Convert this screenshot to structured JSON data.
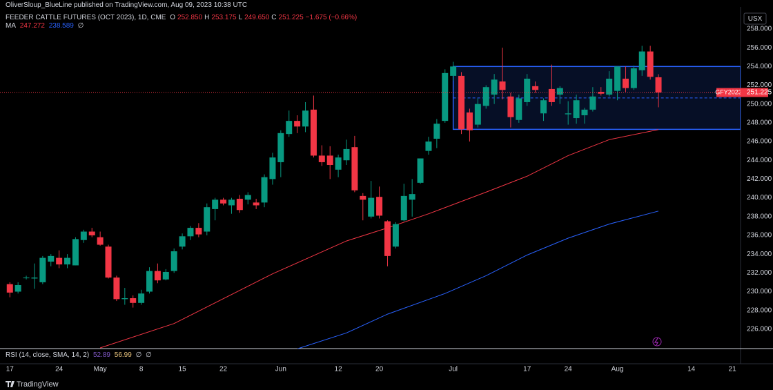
{
  "header": {
    "publisher": "OliverSloup_BlueLine published on TradingView.com, Aug 09, 2023 10:38 UTC",
    "symbol": "FEEDER CATTLE FUTURES (OCT 2023), 1D, CME",
    "ohlc": [
      {
        "key": "O",
        "value": "252.850"
      },
      {
        "key": "H",
        "value": "253.175"
      },
      {
        "key": "L",
        "value": "249.650"
      },
      {
        "key": "C",
        "value": "251.225"
      }
    ],
    "change": "−1.675 (−0.66%)",
    "ma_label": "MA",
    "ma_values": [
      "247.272",
      "238.589"
    ],
    "ma_empty": "∅",
    "rsi_label": "RSI (14, close, SMA, 14, 2)",
    "rsi_values": [
      "52.89",
      "56.99"
    ],
    "rsi_empty": [
      "∅",
      "∅"
    ],
    "currency": "USX",
    "logo": "TradingView"
  },
  "chart_data": {
    "type": "candlestick",
    "up_color": "#089981",
    "down_color": "#f23645",
    "open": [
      230.8,
      230.0,
      231.5,
      231.4,
      231.0,
      233.2,
      233.6,
      232.9,
      232.8,
      235.5,
      236.4,
      235.8,
      234.8,
      231.5,
      229.2,
      229.3,
      228.8,
      230.0,
      232.2,
      231.3,
      232.2,
      234.8,
      235.9,
      236.8,
      236.4,
      238.8,
      239.8,
      239.2,
      239.9,
      239.8,
      239.5,
      239.5,
      242.0,
      243.8,
      246.8,
      248.2,
      247.6,
      249.4,
      244.5,
      244.5,
      243.0,
      244.0,
      245.4,
      240.2,
      238.0,
      240.1,
      237.5,
      234.8,
      237.6,
      239.8,
      241.6,
      245.0,
      246.3,
      248.2,
      253.0,
      253.0,
      249.1,
      247.8,
      249.8,
      251.0,
      252.4,
      250.8,
      248.3,
      250.2,
      251.9,
      249.0,
      251.6,
      251.0,
      248.9,
      248.5,
      248.8,
      249.4,
      251.3,
      251.0,
      251.4,
      252.7,
      251.7,
      253.6,
      255.6,
      252.85
    ],
    "high": [
      231.0,
      231.0,
      231.7,
      233.0,
      233.8,
      234.0,
      234.4,
      234.0,
      235.8,
      236.6,
      236.8,
      236.4,
      235.0,
      231.7,
      230.4,
      229.6,
      230.2,
      232.6,
      233.0,
      232.4,
      234.6,
      236.2,
      237.0,
      237.3,
      239.4,
      240.0,
      240.0,
      240.0,
      240.3,
      240.6,
      239.9,
      242.5,
      244.8,
      247.2,
      249.3,
      248.8,
      250.2,
      250.9,
      245.6,
      245.5,
      244.6,
      246.2,
      246.6,
      240.5,
      241.8,
      241.2,
      237.6,
      237.4,
      241.5,
      242.0,
      244.2,
      246.5,
      248.4,
      253.7,
      254.5,
      253.4,
      249.5,
      250.6,
      252.0,
      253.2,
      256.0,
      251.2,
      251.0,
      253.2,
      252.4,
      250.6,
      254.2,
      251.9,
      250.3,
      251.0,
      249.6,
      251.8,
      251.8,
      253.5,
      254.0,
      254.0,
      254.1,
      256.2,
      256.2,
      253.175
    ],
    "low": [
      229.4,
      229.8,
      231.3,
      230.3,
      230.8,
      232.7,
      232.5,
      232.5,
      232.8,
      235.2,
      235.8,
      234.9,
      231.4,
      229.0,
      228.6,
      228.3,
      228.6,
      229.8,
      230.9,
      231.2,
      232.0,
      234.5,
      235.5,
      235.8,
      236.0,
      237.6,
      239.2,
      238.3,
      238.4,
      239.3,
      238.8,
      239.0,
      241.4,
      242.2,
      246.5,
      246.9,
      247.0,
      244.3,
      243.4,
      242.0,
      242.2,
      243.5,
      240.6,
      237.6,
      237.8,
      237.8,
      232.7,
      234.6,
      237.5,
      238.0,
      241.5,
      244.6,
      245.3,
      248.0,
      252.5,
      246.8,
      246.0,
      247.5,
      249.5,
      250.0,
      250.5,
      247.5,
      248.0,
      249.8,
      251.2,
      248.2,
      249.8,
      250.0,
      247.8,
      247.9,
      247.9,
      249.2,
      250.9,
      250.8,
      250.4,
      251.3,
      251.5,
      253.0,
      252.6,
      249.65
    ],
    "close": [
      229.9,
      230.7,
      231.5,
      231.5,
      233.6,
      233.8,
      232.9,
      233.6,
      235.6,
      236.4,
      236.0,
      235.0,
      231.5,
      229.2,
      229.3,
      228.8,
      229.8,
      232.2,
      231.2,
      232.1,
      234.3,
      235.9,
      236.8,
      236.1,
      239.0,
      239.8,
      239.4,
      239.8,
      238.7,
      240.3,
      239.2,
      242.2,
      244.3,
      246.9,
      248.2,
      247.6,
      249.3,
      244.5,
      243.8,
      243.5,
      244.3,
      245.2,
      240.8,
      239.8,
      240.0,
      238.1,
      233.8,
      237.2,
      240.2,
      240.4,
      244.2,
      246.0,
      247.9,
      253.3,
      254.0,
      247.3,
      247.2,
      250.0,
      251.8,
      252.6,
      251.5,
      248.6,
      250.6,
      252.7,
      251.5,
      250.4,
      250.2,
      251.7,
      249.0,
      250.4,
      249.4,
      250.8,
      251.1,
      252.7,
      254.0,
      251.7,
      253.8,
      255.6,
      252.9,
      251.225
    ],
    "moving_averages": [
      {
        "color": "#f23645",
        "x": [
          11,
          20,
          32,
          41,
          46,
          51,
          58,
          63,
          68,
          73,
          79
        ],
        "values": [
          224.0,
          226.6,
          231.9,
          235.4,
          236.8,
          238.3,
          240.6,
          242.3,
          244.5,
          246.2,
          247.272
        ]
      },
      {
        "color": "#2962ff",
        "x": [
          35,
          41,
          46,
          53,
          58,
          63,
          68,
          73,
          79
        ],
        "values": [
          223.9,
          225.6,
          227.6,
          229.8,
          231.7,
          233.9,
          235.7,
          237.2,
          238.589
        ]
      }
    ],
    "range_box": {
      "x": [
        54,
        89
      ],
      "y": [
        247.3,
        254.0
      ],
      "color": "#2962ff"
    },
    "last_tag": {
      "symbol": "GFY2023",
      "price": "251.225"
    },
    "xlim": [
      -1.2,
      89
    ],
    "ylim": [
      223.93,
      260.35
    ],
    "xticks": [
      {
        "value": 0,
        "label": "17"
      },
      {
        "value": 6,
        "label": "24"
      },
      {
        "value": 11,
        "label": "May"
      },
      {
        "value": 16,
        "label": "8"
      },
      {
        "value": 21,
        "label": "15"
      },
      {
        "value": 26,
        "label": "22"
      },
      {
        "value": 33,
        "label": "Jun"
      },
      {
        "value": 40,
        "label": "12"
      },
      {
        "value": 45,
        "label": "20"
      },
      {
        "value": 54,
        "label": "Jul"
      },
      {
        "value": 63,
        "label": "17"
      },
      {
        "value": 68,
        "label": "24"
      },
      {
        "value": 74,
        "label": "Aug"
      },
      {
        "value": 83,
        "label": "14"
      },
      {
        "value": 88,
        "label": "21"
      }
    ],
    "yticks": [
      {
        "value": 226,
        "label": "226.000"
      },
      {
        "value": 228,
        "label": "228.000"
      },
      {
        "value": 230,
        "label": "230.000"
      },
      {
        "value": 232,
        "label": "232.000"
      },
      {
        "value": 234,
        "label": "234.000"
      },
      {
        "value": 236,
        "label": "236.000"
      },
      {
        "value": 238,
        "label": "238.000"
      },
      {
        "value": 240,
        "label": "240.000"
      },
      {
        "value": 242,
        "label": "242.000"
      },
      {
        "value": 244,
        "label": "244.000"
      },
      {
        "value": 246,
        "label": "246.000"
      },
      {
        "value": 248,
        "label": "248.000"
      },
      {
        "value": 250,
        "label": "250.000"
      },
      {
        "value": 252,
        "label": "252.000"
      },
      {
        "value": 254,
        "label": "254.000"
      },
      {
        "value": 256,
        "label": "256.000"
      },
      {
        "value": 258,
        "label": "258.000"
      }
    ]
  }
}
